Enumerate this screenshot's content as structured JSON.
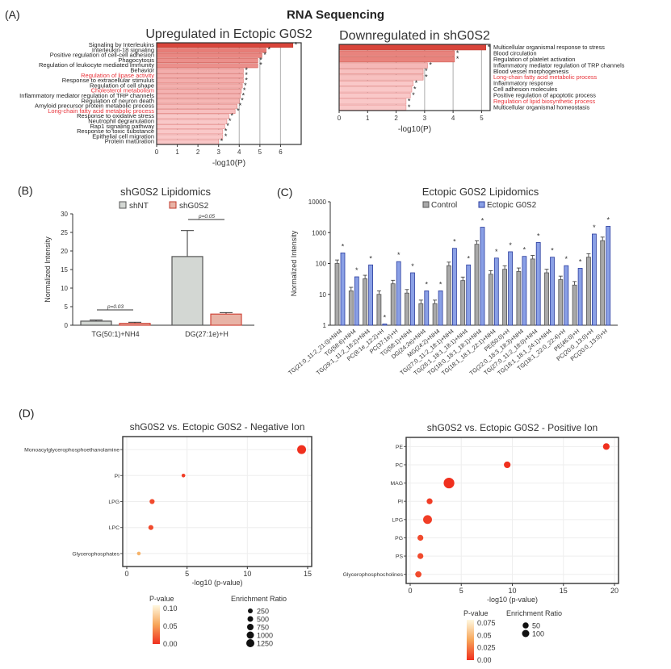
{
  "panels": {
    "A": "(A)",
    "B": "(B)",
    "C": "(C)",
    "D": "(D)"
  },
  "header": {
    "title": "RNA Sequencing"
  },
  "chart_data": [
    {
      "id": "A-up",
      "type": "bar",
      "orientation": "horizontal",
      "title": "Upregulated in Ectopic G0S2",
      "xlabel": "-log10(P)",
      "xlim": [
        0,
        7
      ],
      "xticks": [
        "0",
        "1",
        "2",
        "3",
        "4",
        "5",
        "6"
      ],
      "grid": true,
      "categories": [
        "Signaling by Interleukins",
        "Interleukin-18 signaling",
        "Positive regulation of cell-cell adhesion",
        "Phagocytosis",
        "Regulation of leukocyte mediated immunity",
        "Behavior",
        "Regulation of lipase activity",
        "Response to extracellular stimulus",
        "Regulation of cell shape",
        "Cholesterol metabolism",
        "Inflammatory mediator regulation of TRP channels",
        "Regulation of neuron death",
        "Amyloid precursor protein metabolic process",
        "Long-chain fatty acid metabolic process",
        "Response to oxidative stress",
        "Neutrophil degranulation",
        "Rap1 signaling pathway",
        "Response to toxic substance",
        "Epithelial cell migration",
        "Protein maturation"
      ],
      "highlighted": [
        "Regulation of lipase activity",
        "Cholesterol metabolism",
        "Long-chain fatty acid metabolic process"
      ],
      "values": [
        6.6,
        5.3,
        5.1,
        4.9,
        4.9,
        4.2,
        4.2,
        4.2,
        4.15,
        4.1,
        4.05,
        4.0,
        3.9,
        3.8,
        3.5,
        3.4,
        3.3,
        3.2,
        3.2,
        3.0
      ],
      "significance": "*"
    },
    {
      "id": "A-down",
      "type": "bar",
      "orientation": "horizontal",
      "title": "Downregulated in shG0S2",
      "xlabel": "-log10(P)",
      "xlim": [
        0,
        5.3
      ],
      "xticks": [
        "0",
        "1",
        "2",
        "3",
        "4",
        "5"
      ],
      "grid": true,
      "categories": [
        "Multicellular organismal response to stress",
        "Blood circulation",
        "Regulation of platelet activation",
        "Inflammatory mediator regulation of TRP channels",
        "Blood vessel morphogenesis",
        "Long-chain fatty acid metabolic process",
        "Inflammatory response",
        "Cell adhesion molecules",
        "Positive regulation of apoptotic process",
        "Regulation of lipid biosynthetic process",
        "Multicellular organismal homeostasis"
      ],
      "highlighted": [
        "Long-chain fatty acid metabolic process",
        "Regulation of lipid biosynthetic process"
      ],
      "values": [
        5.15,
        4.05,
        4.05,
        3.1,
        2.95,
        2.95,
        2.6,
        2.55,
        2.5,
        2.35,
        2.35
      ],
      "significance": "*"
    },
    {
      "id": "B",
      "type": "bar",
      "title": "shG0S2 Lipidomics",
      "ylabel": "Normalized Intensity",
      "ylim": [
        0,
        30
      ],
      "yticks": [
        "0",
        "5",
        "10",
        "15",
        "20",
        "25",
        "30"
      ],
      "categories": [
        "TG(50:1)+NH4",
        "DG(27:1e)+H"
      ],
      "series": [
        {
          "name": "shNT",
          "values": [
            1.1,
            18.5
          ],
          "errors": [
            0.3,
            7.0
          ],
          "color": "#d3d7d3"
        },
        {
          "name": "shG0S2",
          "values": [
            0.5,
            3.0
          ],
          "errors": [
            0.3,
            0.4
          ],
          "color": "#e8b3a6"
        }
      ],
      "annotations": [
        "p=0.03",
        "p=0.05"
      ]
    },
    {
      "id": "C",
      "type": "bar",
      "title": "Ectopic G0S2 Lipidomics",
      "ylabel": "Normalized Intensity",
      "yscale": "log",
      "ylim": [
        1,
        10000
      ],
      "yticks": [
        "1",
        "10",
        "100",
        "1000",
        "10000"
      ],
      "categories": [
        "TG(21:0_11:2_21:0)+NH4",
        "TG(58:6)+NH4",
        "TG(29:1_11:2_18:2)+NH4",
        "PC(8:1e_12:2)+H",
        "PC(37:1e)+H",
        "TG(58:1)+NH4",
        "DG(24:2e)+NH4",
        "MG(24:2)+NH4",
        "TG(27:0_11:2_18:1)+NH4",
        "TG(26:1_18:1_18:1)+NH4",
        "TG(18:0_18:1_18:1)+NH4",
        "TG(18:1_18:1_22:1)+NH4",
        "PE(50:0)+H",
        "TG(22:0_18:3_18:3)+NH4",
        "TG(27:0_11:2_18:0)+NH4",
        "TG(18:1_18:1_24:1)+NH4",
        "TG(18:1_22:0_22:4)+H",
        "PE(46:0)+H",
        "PC(20:0_13:0)+H",
        "PC(20:0_13:0)+H"
      ],
      "series": [
        {
          "name": "Control",
          "values": [
            100,
            13,
            32,
            10,
            22,
            11,
            5,
            5,
            85,
            28,
            420,
            45,
            65,
            55,
            140,
            50,
            30,
            20,
            160,
            550
          ],
          "color": "#a9a9a9"
        },
        {
          "name": "Ectopic G0S2",
          "values": [
            220,
            37,
            90,
            1.1,
            115,
            50,
            13,
            13,
            310,
            90,
            1500,
            150,
            240,
            170,
            480,
            160,
            85,
            70,
            900,
            1600
          ],
          "color": "#8aa0e6"
        }
      ],
      "significance": "*"
    },
    {
      "id": "D-neg",
      "type": "scatter",
      "title": "shG0S2 vs. Ectopic G0S2 - Negative Ion",
      "xlabel": "-log10 (p-value)",
      "xlim": [
        0,
        15
      ],
      "xticks": [
        "0",
        "5",
        "10",
        "15"
      ],
      "grid": true,
      "categories": [
        "Monoacylglycerophosphoethanolamine",
        "PI",
        "LPG",
        "LPC",
        "Glycerophosphates"
      ],
      "x": [
        14.5,
        4.7,
        2.1,
        2.0,
        1.0
      ],
      "pvalue": [
        0.0,
        0.01,
        0.02,
        0.02,
        0.1
      ],
      "enrichment_ratio": [
        1250,
        250,
        500,
        500,
        250
      ],
      "legend": {
        "color_title": "P-value",
        "color_ticks": [
          "0.10",
          "0.05",
          "0.00"
        ],
        "size_title": "Enrichment Ratio",
        "size_ticks": [
          "250",
          "500",
          "750",
          "1000",
          "1250"
        ]
      }
    },
    {
      "id": "D-pos",
      "type": "scatter",
      "title": "shG0S2 vs. Ectopic G0S2 - Positive Ion",
      "xlabel": "-log10 (p-value)",
      "xlim": [
        0,
        20
      ],
      "xticks": [
        "0",
        "5",
        "10",
        "15",
        "20"
      ],
      "grid": true,
      "categories": [
        "PE",
        "PC",
        "MAG",
        "PI",
        "LPG",
        "PG",
        "PS",
        "Glycerophosphocholines"
      ],
      "x": [
        19.2,
        9.5,
        3.8,
        1.9,
        1.7,
        1.0,
        1.0,
        0.8
      ],
      "pvalue": [
        0.0,
        0.0,
        0.0,
        0.01,
        0.01,
        0.02,
        0.02,
        0.02
      ],
      "enrichment_ratio": [
        55,
        55,
        110,
        45,
        85,
        45,
        45,
        50
      ],
      "legend": {
        "color_title": "P-value",
        "color_ticks": [
          "0.075",
          "0.05",
          "0.025",
          "0.00"
        ],
        "size_title": "Enrichment Ratio",
        "size_ticks": [
          "50",
          "100"
        ]
      }
    }
  ],
  "colors": {
    "highlight_text": "#e8333a",
    "bar_dark": "#d9453b",
    "bar_light": "#f9c8c8",
    "control": "#a9a9a9",
    "ectopic": "#8aa0e6",
    "ectopic_edge": "#2c3e9e",
    "dot": "#f0301e"
  }
}
